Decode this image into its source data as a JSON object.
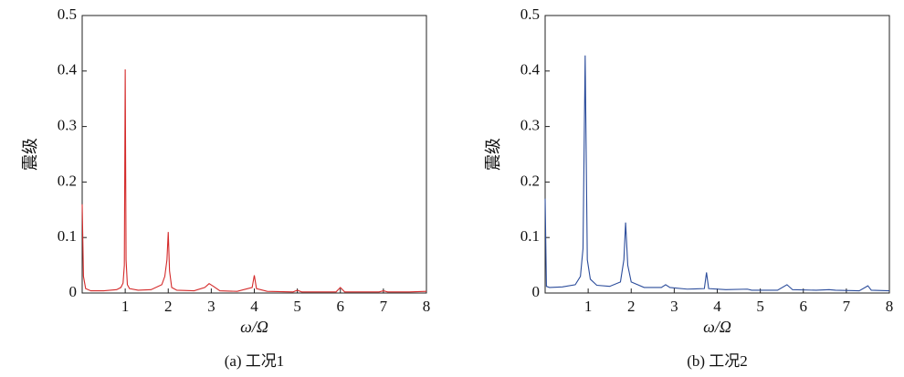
{
  "chart_data": [
    {
      "type": "line",
      "ylabel": "震级",
      "xlabel": "ω/Ω",
      "caption": "(a) 工况1",
      "color": "#d42a2a",
      "xlim": [
        0,
        8
      ],
      "ylim": [
        0,
        0.5
      ],
      "xticks": [
        1,
        2,
        3,
        4,
        5,
        6,
        7,
        8
      ],
      "yticks": [
        0,
        0.1,
        0.2,
        0.3,
        0.4,
        0.5
      ],
      "x": [
        0,
        0.03,
        0.08,
        0.2,
        0.5,
        0.8,
        0.9,
        0.95,
        0.98,
        1.0,
        1.02,
        1.05,
        1.1,
        1.3,
        1.6,
        1.85,
        1.92,
        1.97,
        2.0,
        2.03,
        2.08,
        2.2,
        2.6,
        2.85,
        2.95,
        3.05,
        3.2,
        3.6,
        3.95,
        4.0,
        4.05,
        4.3,
        4.9,
        5.0,
        5.1,
        5.9,
        6.0,
        6.1,
        6.9,
        7.0,
        7.1,
        7.6,
        8.0
      ],
      "values": [
        0.16,
        0.03,
        0.008,
        0.004,
        0.004,
        0.006,
        0.01,
        0.018,
        0.05,
        0.403,
        0.06,
        0.015,
        0.008,
        0.005,
        0.006,
        0.015,
        0.03,
        0.06,
        0.11,
        0.04,
        0.01,
        0.005,
        0.004,
        0.01,
        0.017,
        0.012,
        0.004,
        0.003,
        0.01,
        0.032,
        0.008,
        0.003,
        0.002,
        0.005,
        0.002,
        0.002,
        0.01,
        0.002,
        0.002,
        0.004,
        0.002,
        0.002,
        0.003
      ]
    },
    {
      "type": "line",
      "ylabel": "震级",
      "xlabel": "ω/Ω",
      "caption": "(b) 工况2",
      "color": "#2b4c9b",
      "xlim": [
        0,
        8
      ],
      "ylim": [
        0,
        0.5
      ],
      "xticks": [
        1,
        2,
        3,
        4,
        5,
        6,
        7,
        8
      ],
      "yticks": [
        0,
        0.1,
        0.2,
        0.3,
        0.4,
        0.5
      ],
      "x": [
        0,
        0.03,
        0.1,
        0.4,
        0.7,
        0.82,
        0.88,
        0.93,
        0.98,
        1.05,
        1.2,
        1.5,
        1.75,
        1.83,
        1.87,
        1.92,
        2.0,
        2.3,
        2.7,
        2.8,
        2.9,
        3.3,
        3.7,
        3.75,
        3.8,
        4.2,
        4.7,
        4.8,
        5.4,
        5.62,
        5.75,
        6.3,
        6.6,
        6.75,
        7.3,
        7.5,
        7.58,
        8.0
      ],
      "values": [
        0.17,
        0.012,
        0.01,
        0.011,
        0.015,
        0.03,
        0.08,
        0.428,
        0.06,
        0.025,
        0.014,
        0.012,
        0.02,
        0.06,
        0.127,
        0.05,
        0.02,
        0.01,
        0.01,
        0.015,
        0.01,
        0.007,
        0.008,
        0.037,
        0.008,
        0.006,
        0.007,
        0.005,
        0.005,
        0.015,
        0.006,
        0.005,
        0.006,
        0.005,
        0.004,
        0.013,
        0.005,
        0.004
      ]
    }
  ]
}
